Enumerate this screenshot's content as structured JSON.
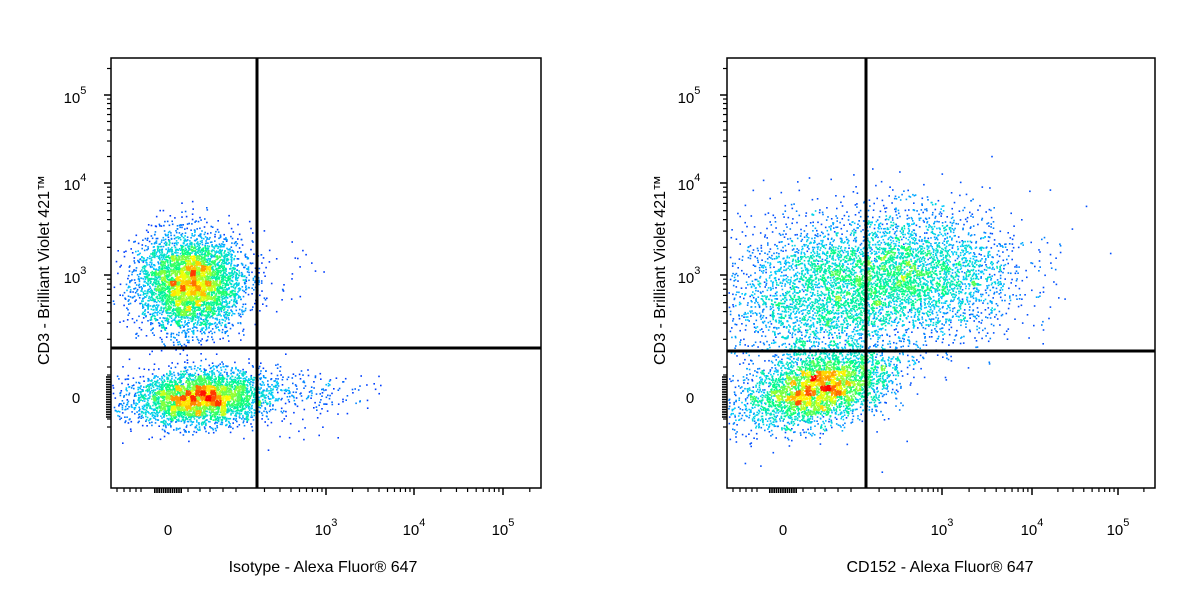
{
  "chart_data": [
    {
      "type": "scatter",
      "subtype": "flow-cytometry-pseudocolor-density",
      "xlabel": "Isotype - Alexa Fluor® 647",
      "ylabel": "CD3 - Brilliant Violet 421™",
      "x_scale": "biexponential",
      "y_scale": "biexponential",
      "x_tick_labels": [
        {
          "base": "0",
          "exp": ""
        },
        {
          "base": "10",
          "exp": "3"
        },
        {
          "base": "10",
          "exp": "4"
        },
        {
          "base": "10",
          "exp": "5"
        }
      ],
      "y_tick_labels": [
        {
          "base": "0",
          "exp": ""
        },
        {
          "base": "10",
          "exp": "3"
        },
        {
          "base": "10",
          "exp": "4"
        },
        {
          "base": "10",
          "exp": "5"
        }
      ],
      "quadrant_gate": {
        "x": 200,
        "y": 150
      },
      "populations": [
        {
          "x_center": 50,
          "y_center": 800,
          "relative_count": 0.55
        },
        {
          "x_center": 80,
          "y_center": 0,
          "relative_count": 0.43
        },
        {
          "x_center": 400,
          "y_center": 20,
          "relative_count": 0.02
        }
      ],
      "colormap": [
        "#0000ff",
        "#00c8ff",
        "#00ff80",
        "#ffff00",
        "#ff0000"
      ]
    },
    {
      "type": "scatter",
      "subtype": "flow-cytometry-pseudocolor-density",
      "xlabel": "CD152 - Alexa Fluor® 647",
      "ylabel": "CD3 - Brilliant Violet 421™",
      "x_scale": "biexponential",
      "y_scale": "biexponential",
      "x_tick_labels": [
        {
          "base": "0",
          "exp": ""
        },
        {
          "base": "10",
          "exp": "3"
        },
        {
          "base": "10",
          "exp": "4"
        },
        {
          "base": "10",
          "exp": "5"
        }
      ],
      "y_tick_labels": [
        {
          "base": "0",
          "exp": ""
        },
        {
          "base": "10",
          "exp": "3"
        },
        {
          "base": "10",
          "exp": "4"
        },
        {
          "base": "10",
          "exp": "5"
        }
      ],
      "quadrant_gate": {
        "x": 170,
        "y": 140
      },
      "populations": [
        {
          "x_center": 100,
          "y_center": 0,
          "relative_count": 0.4
        },
        {
          "x_center": 300,
          "y_center": 800,
          "relative_count": 0.35
        },
        {
          "x_center": 30,
          "y_center": 600,
          "relative_count": 0.25
        }
      ],
      "colormap": [
        "#0000ff",
        "#00c8ff",
        "#00ff80",
        "#ffff00",
        "#ff0000"
      ]
    }
  ]
}
